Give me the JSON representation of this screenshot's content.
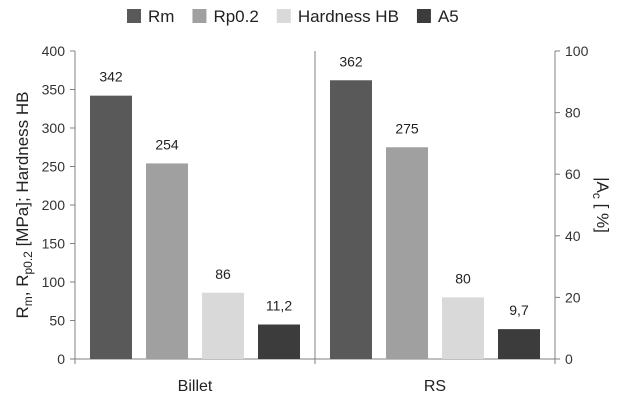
{
  "chart_data": {
    "type": "bar",
    "categories": [
      "Billet",
      "RS"
    ],
    "series": [
      {
        "name": "Rm",
        "values": [
          342,
          362
        ],
        "labels": [
          "342",
          "362"
        ],
        "axis": "left",
        "color": "#595959"
      },
      {
        "name": "Rp0.2",
        "values": [
          254,
          275
        ],
        "labels": [
          "254",
          "275"
        ],
        "axis": "left",
        "color": "#a0a0a0"
      },
      {
        "name": "Hardness HB",
        "values": [
          86,
          80
        ],
        "labels": [
          "86",
          "80"
        ],
        "axis": "left",
        "color": "#d9d9d9"
      },
      {
        "name": "A5",
        "values": [
          11.2,
          9.7
        ],
        "labels": [
          "11,2",
          "9,7"
        ],
        "axis": "right",
        "color": "#3c3c3c"
      }
    ],
    "y_left": {
      "label_parts": [
        "R",
        "m",
        ", R",
        "p0.2",
        " [MPa]; Hardness HB"
      ],
      "ylim": [
        0,
        400
      ],
      "ticks": [
        "0",
        "50",
        "100",
        "150",
        "200",
        "250",
        "300",
        "350",
        "400"
      ]
    },
    "y_right": {
      "label_parts": [
        "|A",
        "c",
        " [ %]"
      ],
      "ylim": [
        0,
        100
      ],
      "ticks": [
        "0",
        "20",
        "40",
        "60",
        "80",
        "100"
      ]
    },
    "legend_position": "top",
    "grid": false
  }
}
